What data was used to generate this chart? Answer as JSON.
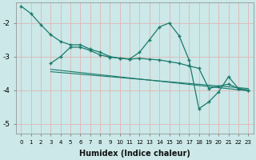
{
  "bg_color": "#cce8e8",
  "grid_color": "#ddbcbc",
  "line_color": "#1a7a6a",
  "x": [
    0,
    1,
    2,
    3,
    4,
    5,
    6,
    7,
    8,
    9,
    10,
    11,
    12,
    13,
    14,
    15,
    16,
    17,
    18,
    19,
    20,
    21,
    22,
    23
  ],
  "series1": [
    -1.5,
    -1.72,
    -2.05,
    -2.35,
    -2.55,
    -2.65,
    -2.65,
    -2.78,
    -2.87,
    -3.0,
    -3.05,
    -3.07,
    -2.87,
    -2.5,
    -2.12,
    -2.0,
    -2.38,
    -3.1,
    -4.55,
    -4.35,
    -4.05,
    -3.6,
    -3.95,
    -4.0
  ],
  "series2": [
    -999,
    -999,
    -999,
    -3.2,
    -3.0,
    -2.72,
    -2.72,
    -2.82,
    -2.95,
    -3.02,
    -3.05,
    -3.08,
    -3.05,
    -3.08,
    -3.1,
    -3.15,
    -3.2,
    -3.28,
    -3.35,
    -3.95,
    -3.88,
    -3.82,
    -3.95,
    -4.0
  ],
  "line3_x": [
    3,
    23
  ],
  "line3_y": [
    -3.38,
    -4.02
  ],
  "line4_x": [
    3,
    23
  ],
  "line4_y": [
    -3.45,
    -3.95
  ],
  "xlabel": "Humidex (Indice chaleur)",
  "yticks": [
    -5,
    -4,
    -3,
    -2
  ],
  "ylim": [
    -5.3,
    -1.4
  ],
  "xlim": [
    -0.5,
    23.5
  ]
}
